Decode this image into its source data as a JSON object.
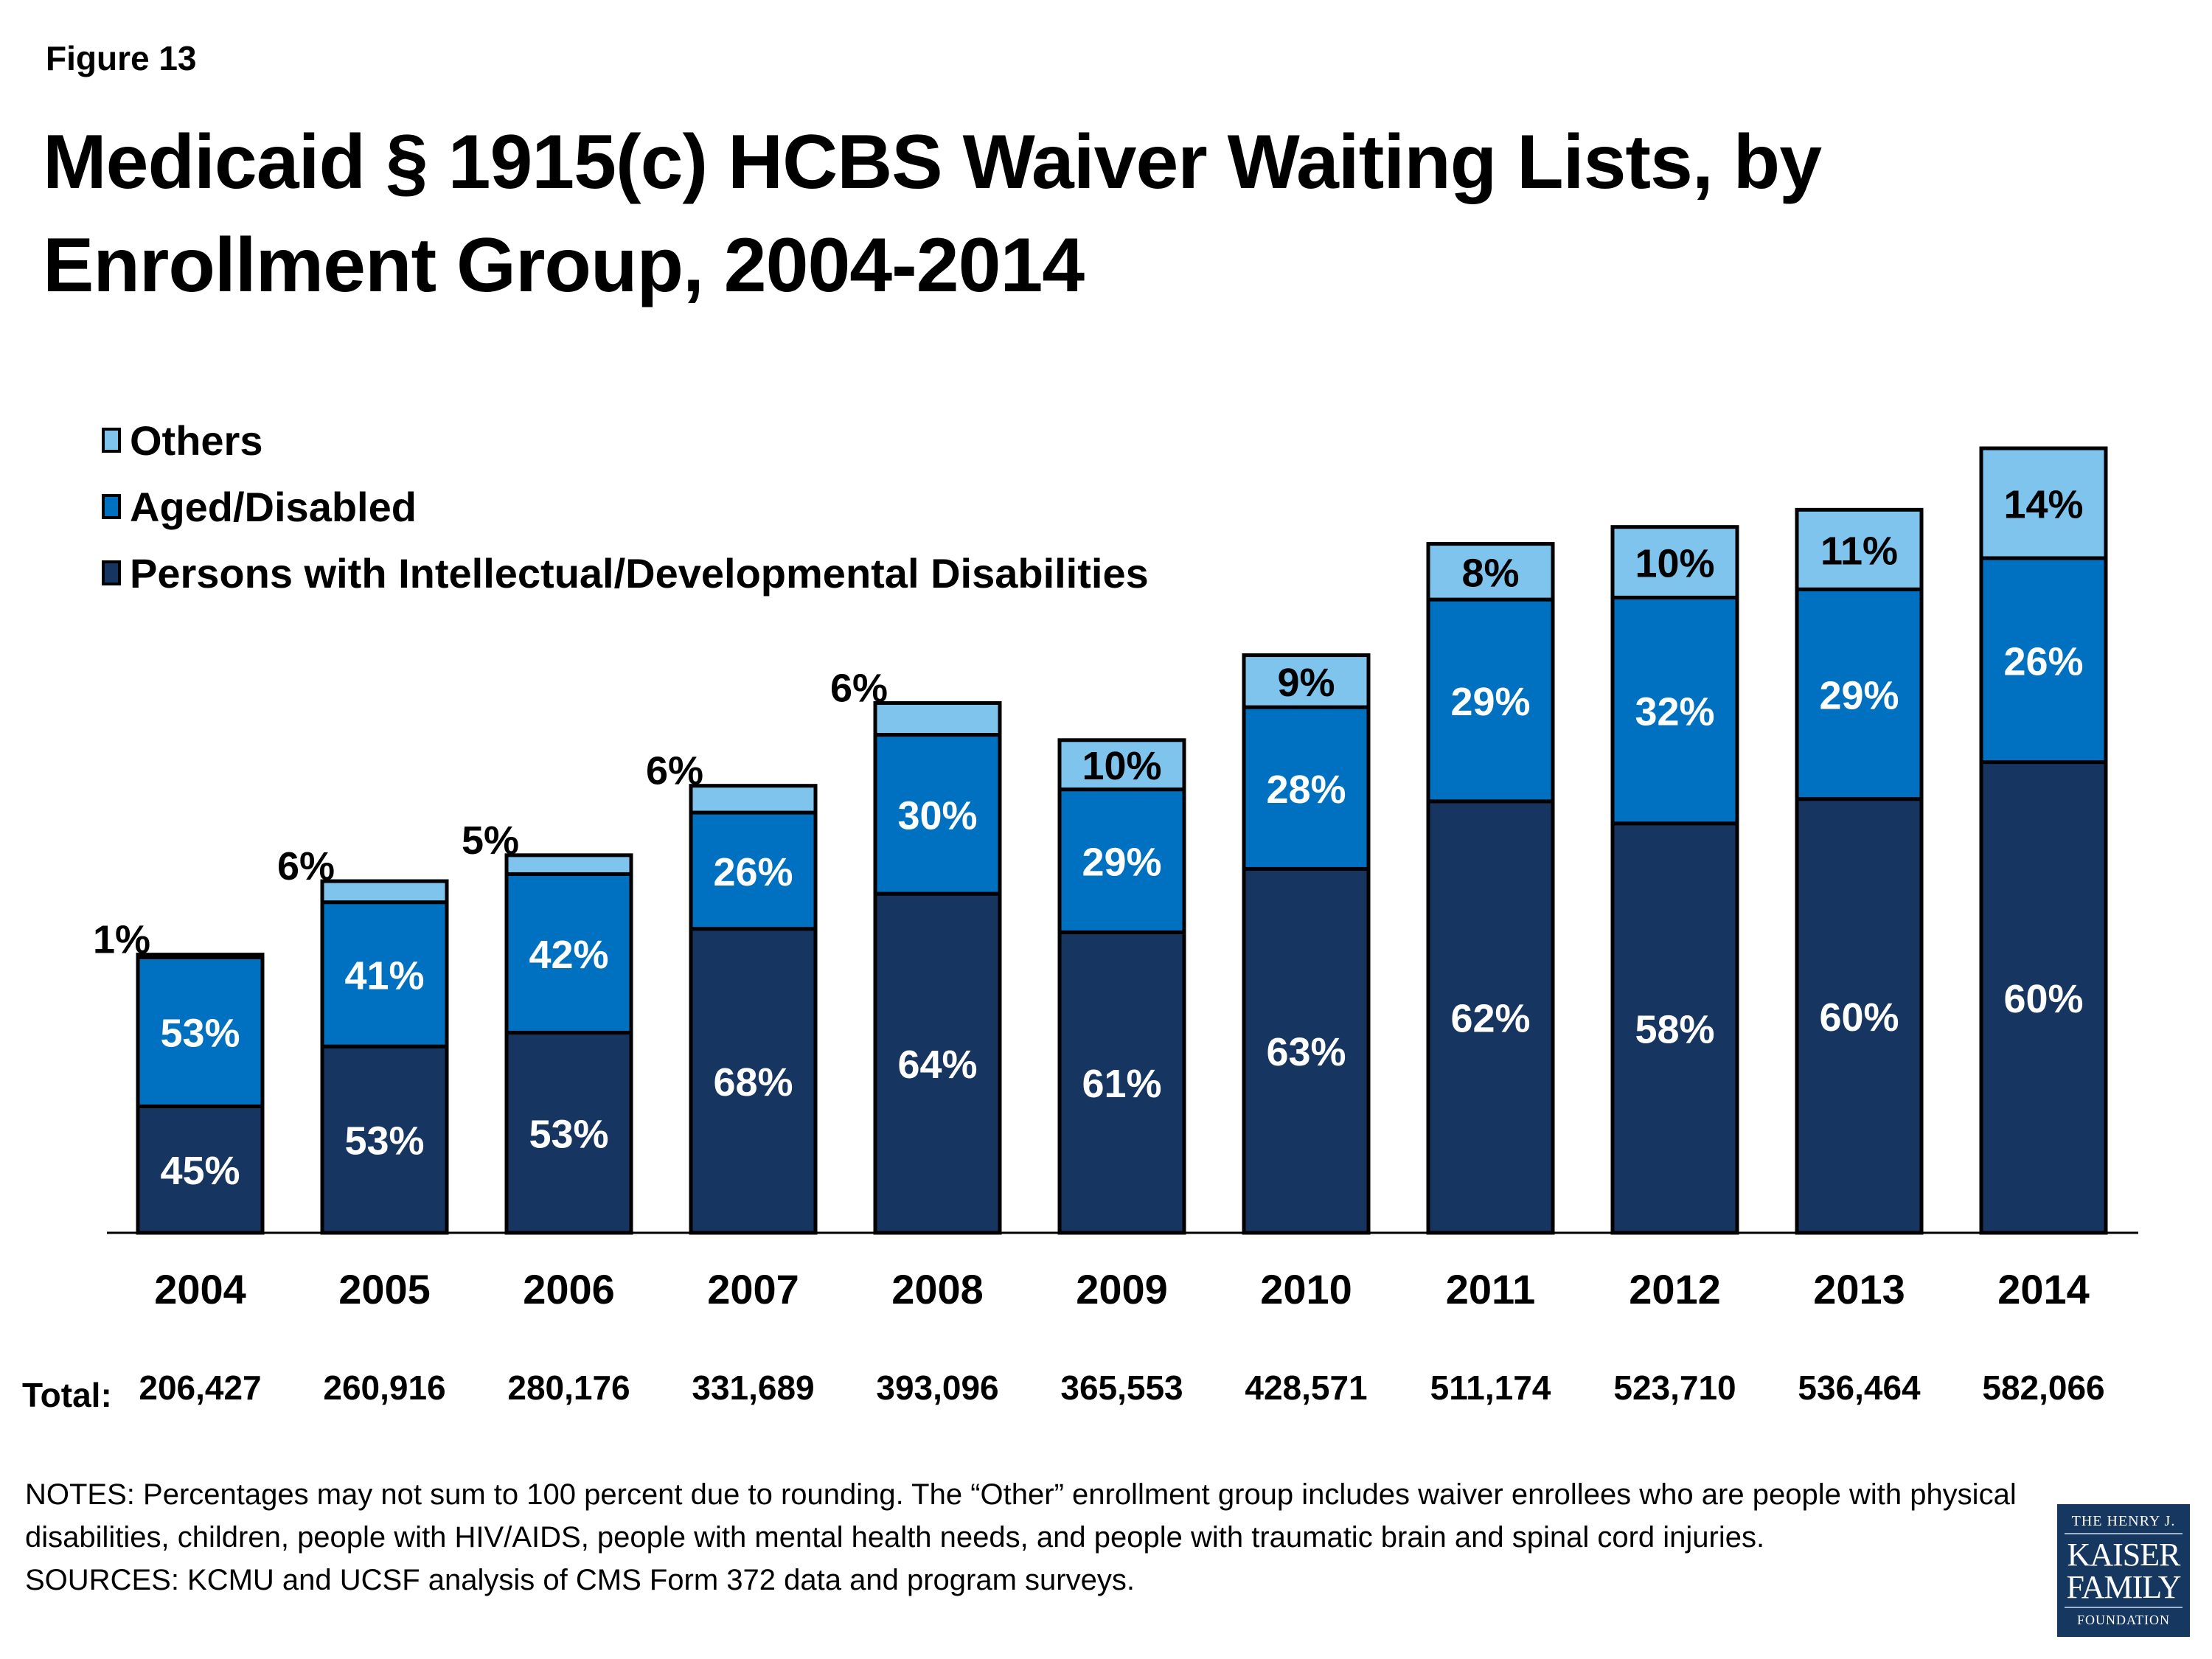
{
  "figure_label": "Figure 13",
  "title": "Medicaid § 1915(c) HCBS Waiver Waiting Lists, by Enrollment Group, 2004-2014",
  "chart_data": {
    "type": "bar",
    "stacked": true,
    "title": "Medicaid § 1915(c) HCBS Waiver Waiting Lists, by Enrollment Group, 2004-2014",
    "xlabel": "",
    "ylabel": "",
    "categories": [
      "2004",
      "2005",
      "2006",
      "2007",
      "2008",
      "2009",
      "2010",
      "2011",
      "2012",
      "2013",
      "2014"
    ],
    "totals_label": "Total:",
    "totals": [
      206427,
      260916,
      280176,
      331689,
      393096,
      365553,
      428571,
      511174,
      523710,
      536464,
      582066
    ],
    "totals_text": [
      "206,427",
      "260,916",
      "280,176",
      "331,689",
      "393,096",
      "365,553",
      "428,571",
      "511,174",
      "523,710",
      "536,464",
      "582,066"
    ],
    "series": [
      {
        "name": "Persons with Intellectual/Developmental Disabilities",
        "color": "#163560",
        "label_color": "#ffffff",
        "values": [
          45,
          53,
          53,
          68,
          64,
          61,
          63,
          62,
          58,
          60,
          60
        ]
      },
      {
        "name": "Aged/Disabled",
        "color": "#0070c0",
        "label_color": "#ffffff",
        "values": [
          53,
          41,
          42,
          26,
          30,
          29,
          28,
          29,
          32,
          29,
          26
        ]
      },
      {
        "name": "Others",
        "color": "#7fc4ec",
        "label_color": "#000000",
        "values": [
          1,
          6,
          5,
          6,
          6,
          10,
          9,
          8,
          10,
          11,
          14
        ]
      }
    ],
    "value_unit": "percent of total waiting list",
    "ylim": [
      0,
      582066
    ],
    "grid": false,
    "legend": {
      "position": "top-left",
      "order": [
        "Others",
        "Aged/Disabled",
        "Persons with Intellectual/Developmental Disabilities"
      ]
    },
    "others_label_outside": [
      true,
      true,
      true,
      true,
      true,
      false,
      false,
      false,
      false,
      false,
      false
    ]
  },
  "legend": {
    "others": "Others",
    "aged": "Aged/Disabled",
    "idd": "Persons with Intellectual/Developmental Disabilities"
  },
  "notes": "NOTES: Percentages may not sum to 100 percent due to rounding. The “Other” enrollment group includes waiver enrollees who are people with physical disabilities, children, people with HIV/AIDS, people with mental health needs, and people with traumatic brain and spinal cord injuries.",
  "sources": "SOURCES: KCMU and UCSF analysis of CMS Form 372 data and program surveys.",
  "logo": {
    "line1": "THE HENRY J.",
    "line2": "KAISER",
    "line3": "FAMILY",
    "line4": "FOUNDATION"
  }
}
